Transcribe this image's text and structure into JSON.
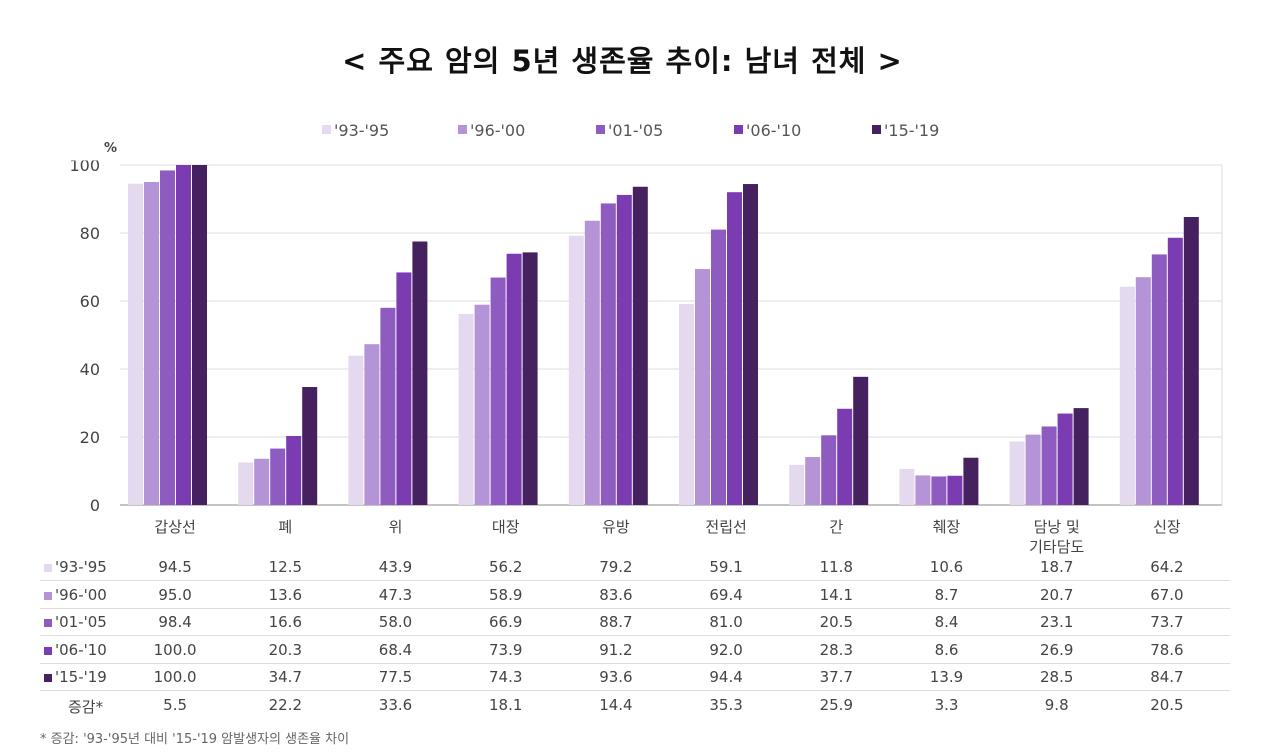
{
  "title": "< 주요 암의 5년 생존율 추이: 남녀 전체 >",
  "footnote": "* 증감: '93-'95년 대비 '15-'19 암발생자의 생존율 차이",
  "chart_data": {
    "type": "bar",
    "ylabel": "%",
    "ylim": [
      0,
      100
    ],
    "yticks": [
      0,
      20,
      40,
      60,
      80,
      100
    ],
    "grid": true,
    "legend_position": "top",
    "categories": [
      "갑상선",
      "폐",
      "위",
      "대장",
      "유방",
      "전립선",
      "간",
      "췌장",
      "담낭 및\n기타담도",
      "신장"
    ],
    "series": [
      {
        "name": "'93-'95",
        "color": "#e4d9ee",
        "values": [
          94.5,
          12.5,
          43.9,
          56.2,
          79.2,
          59.1,
          11.8,
          10.6,
          18.7,
          64.2
        ]
      },
      {
        "name": "'96-'00",
        "color": "#b493d6",
        "values": [
          95.0,
          13.6,
          47.3,
          58.9,
          83.6,
          69.4,
          14.1,
          8.7,
          20.7,
          67.0
        ]
      },
      {
        "name": "'01-'05",
        "color": "#8e5cc0",
        "values": [
          98.4,
          16.6,
          58.0,
          66.9,
          88.7,
          81.0,
          20.5,
          8.4,
          23.1,
          73.7
        ]
      },
      {
        "name": "'06-'10",
        "color": "#7a3cb0",
        "values": [
          100.0,
          20.3,
          68.4,
          73.9,
          91.2,
          92.0,
          28.3,
          8.6,
          26.9,
          78.6
        ]
      },
      {
        "name": "'15-'19",
        "color": "#45215f",
        "values": [
          100.0,
          34.7,
          77.5,
          74.3,
          93.6,
          94.4,
          37.7,
          13.9,
          28.5,
          84.7
        ]
      }
    ],
    "change": {
      "label": "증감*",
      "values": [
        "5.5",
        "22.2",
        "33.6",
        "18.1",
        "14.4",
        "35.3",
        "25.9",
        "3.3",
        "9.8",
        "20.5"
      ]
    }
  }
}
